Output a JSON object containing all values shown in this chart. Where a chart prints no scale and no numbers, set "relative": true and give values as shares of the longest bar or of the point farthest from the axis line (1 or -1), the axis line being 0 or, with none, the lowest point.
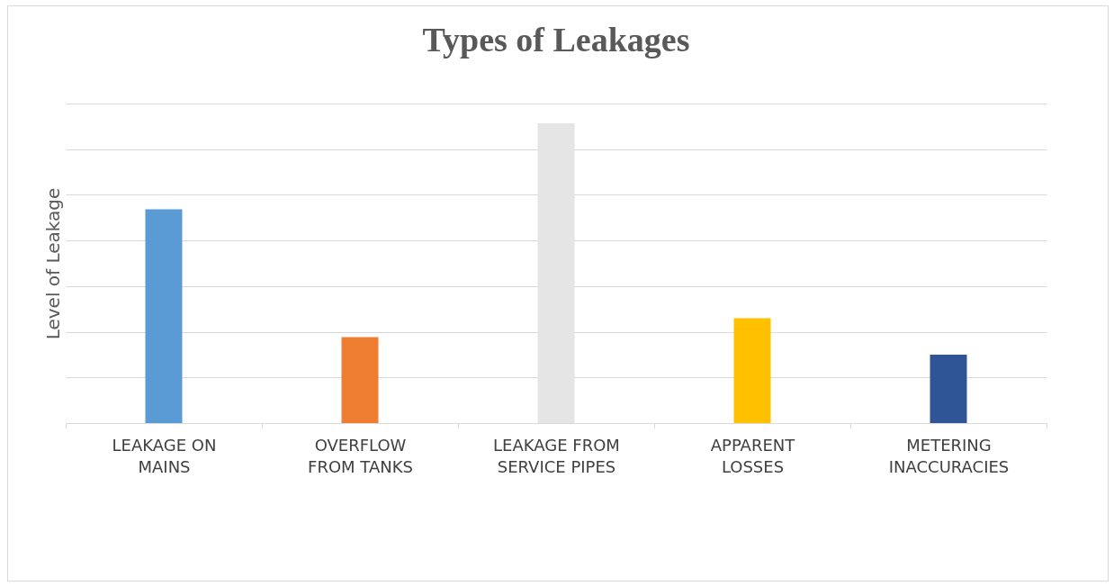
{
  "chart_data": {
    "type": "bar",
    "title": "Types of Leakages",
    "ylabel": "Level of Leakage",
    "categories": [
      "LEAKAGE ON MAINS",
      "OVERFLOW FROM TANKS",
      "LEAKAGE FROM SERVICE PIPES",
      "APPARENT LOSSES",
      "METERING INACCURACIES"
    ],
    "values": [
      0.713,
      0.287,
      1,
      0.35,
      0.228
    ],
    "colors": [
      "#5b9bd5",
      "#ed7d31",
      "#e5e5e5",
      "#ffc000",
      "#2f5597"
    ],
    "relative": true,
    "grid": "y"
  }
}
